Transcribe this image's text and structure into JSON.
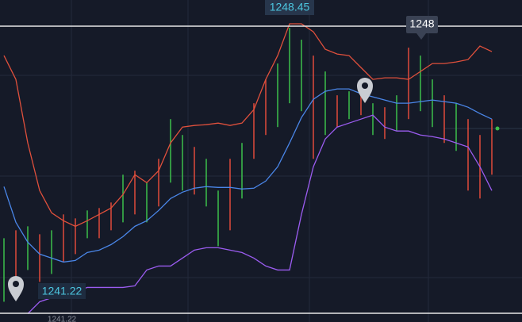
{
  "chart_data": {
    "type": "ohlc",
    "ylim": [
      1241.0,
      1249.11
    ],
    "high": 1248.45,
    "low": 1241.22,
    "marker": 1248,
    "series": [
      {
        "name": null,
        "color": "#e0503c",
        "values": [
          1247.71,
          1247.11,
          1245.51,
          1244.31,
          1243.75,
          1243.55,
          1243.41,
          1243.55,
          1243.71,
          1243.87,
          1244.21,
          1244.71,
          1244.51,
          1244.81,
          1245.51,
          1245.91,
          1245.95,
          1245.97,
          1246.01,
          1245.95,
          1246.01,
          1246.35,
          1247.11,
          1247.71,
          1248.51,
          1248.51,
          1248.31,
          1247.87,
          1247.75,
          1247.71,
          1247.41,
          1247.11,
          1247.15,
          1247.15,
          1247.11,
          1247.31,
          1247.51,
          1247.51,
          1247.55,
          1247.61,
          1247.95,
          1247.81
        ]
      },
      {
        "name": null,
        "color": "#4a86e8",
        "values": [
          1244.41,
          1243.51,
          1243.01,
          1242.71,
          1242.61,
          1242.51,
          1242.55,
          1242.75,
          1242.81,
          1242.95,
          1243.15,
          1243.41,
          1243.55,
          1243.81,
          1244.11,
          1244.27,
          1244.37,
          1244.41,
          1244.39,
          1244.39,
          1244.35,
          1244.37,
          1244.55,
          1244.91,
          1245.51,
          1246.15,
          1246.61,
          1246.81,
          1246.87,
          1246.87,
          1246.75,
          1246.67,
          1246.59,
          1246.51,
          1246.51,
          1246.55,
          1246.59,
          1246.55,
          1246.51,
          1246.41,
          1246.25,
          1246.11
        ]
      },
      {
        "name": null,
        "color": "#9b5cf0",
        "values": [
          null,
          null,
          1241.21,
          1241.51,
          1241.61,
          1241.61,
          1241.75,
          1241.87,
          1241.87,
          1241.87,
          1241.87,
          1241.91,
          1242.31,
          1242.41,
          1242.41,
          1242.61,
          1242.81,
          1242.87,
          1242.87,
          1242.81,
          1242.75,
          1242.61,
          1242.41,
          1242.31,
          1242.31,
          1243.71,
          1244.91,
          1245.61,
          1245.91,
          1246.01,
          1246.11,
          1246.21,
          1245.91,
          1245.81,
          1245.81,
          1245.71,
          1245.67,
          1245.61,
          1245.51,
          1245.41,
          1244.91,
          1244.31
        ]
      }
    ],
    "bars": {
      "high": [
        1243.11,
        1243.31,
        1243.41,
        1243.21,
        1243.31,
        1243.71,
        1243.61,
        1243.81,
        1243.87,
        1244.01,
        1244.71,
        1244.81,
        1244.51,
        1245.11,
        1246.11,
        1245.71,
        1245.41,
        1245.11,
        1244.31,
        1245.11,
        1245.51,
        1246.51,
        1247.11,
        1247.51,
        1248.41,
        1248.11,
        1247.71,
        1247.31,
        1246.71,
        1246.81,
        1246.91,
        1246.51,
        1246.41,
        1246.71,
        1247.91,
        1247.71,
        1247.11,
        1246.71,
        1246.51,
        1246.11,
        1245.71,
        1246.11
      ],
      "low": [
        1241.51,
        1241.91,
        1242.31,
        1242.01,
        1242.21,
        1242.51,
        1242.71,
        1243.11,
        1243.11,
        1243.31,
        1243.51,
        1243.71,
        1243.51,
        1243.91,
        1244.51,
        1244.31,
        1244.21,
        1243.91,
        1242.91,
        1243.31,
        1244.11,
        1245.11,
        1245.71,
        1245.91,
        1246.51,
        1246.31,
        1245.11,
        1245.71,
        1245.91,
        1246.11,
        1246.21,
        1245.71,
        1245.61,
        1245.81,
        1246.11,
        1246.31,
        1245.91,
        1245.51,
        1245.31,
        1244.31,
        1244.11,
        1244.71
      ],
      "colors": [
        "#3dbf4a",
        "#e04a3a",
        "#3dbf4a",
        "#e04a3a",
        "#3dbf4a",
        "#e04a3a",
        "#e04a3a",
        "#3dbf4a",
        "#e04a3a",
        "#e04a3a",
        "#3dbf4a",
        "#e04a3a",
        "#3dbf4a",
        "#e04a3a",
        "#3dbf4a",
        "#3dbf4a",
        "#e04a3a",
        "#3dbf4a",
        "#3dbf4a",
        "#e04a3a",
        "#3dbf4a",
        "#e04a3a",
        "#e04a3a",
        "#3dbf4a",
        "#3dbf4a",
        "#3dbf4a",
        "#e04a3a",
        "#3dbf4a",
        "#e04a3a",
        "#3dbf4a",
        "#e04a3a",
        "#3dbf4a",
        "#e04a3a",
        "#3dbf4a",
        "#e04a3a",
        "#3dbf4a",
        "#3dbf4a",
        "#e04a3a",
        "#3dbf4a",
        "#e04a3a",
        "#e04a3a",
        "#e04a3a"
      ]
    }
  }
}
